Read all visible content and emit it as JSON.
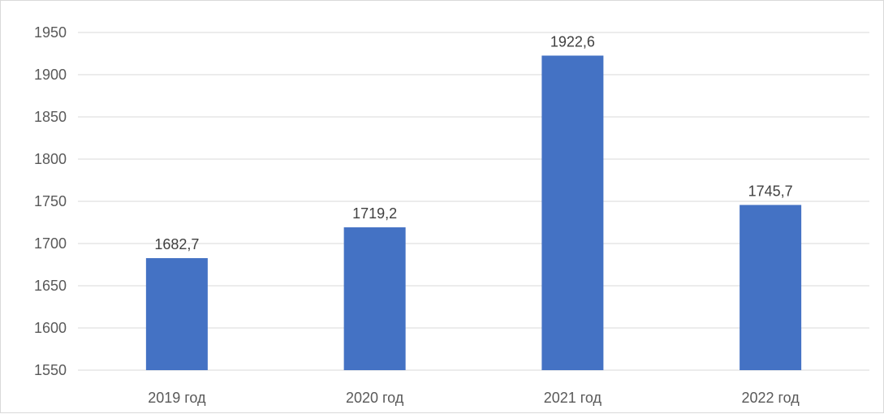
{
  "chart_data": {
    "type": "bar",
    "title": "",
    "xlabel": "",
    "ylabel": "",
    "categories": [
      "2019 год",
      "2020 год",
      "2021 год",
      "2022 год"
    ],
    "values": [
      1682.7,
      1719.2,
      1922.6,
      1745.7
    ],
    "data_labels": [
      "1682,7",
      "1719,2",
      "1922,6",
      "1745,7"
    ],
    "ylim": [
      1550,
      1950
    ],
    "yticks": [
      1550,
      1600,
      1650,
      1700,
      1750,
      1800,
      1850,
      1900,
      1950
    ],
    "grid": true,
    "legend": "none",
    "bar_color": "#4472c4",
    "grid_color": "#d9d9d9"
  }
}
